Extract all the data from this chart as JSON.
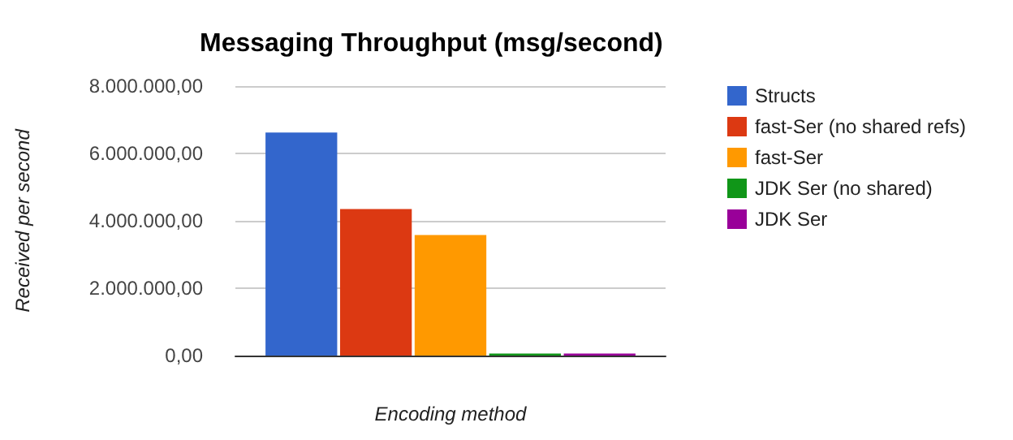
{
  "chart_data": {
    "type": "bar",
    "title": "Messaging Throughput (msg/second)",
    "xlabel": "Encoding method",
    "ylabel": "Received per second",
    "categories": [
      null
    ],
    "series": [
      {
        "name": "Structs",
        "color": "#3366cc",
        "values": [
          6620000
        ]
      },
      {
        "name": "fast-Ser (no shared refs)",
        "color": "#dc3912",
        "values": [
          4350000
        ]
      },
      {
        "name": "fast-Ser",
        "color": "#ff9900",
        "values": [
          3580000
        ]
      },
      {
        "name": "JDK Ser (no shared)",
        "color": "#109618",
        "values": [
          60000
        ]
      },
      {
        "name": "JDK Ser",
        "color": "#990099",
        "values": [
          60000
        ]
      }
    ],
    "ylim": [
      0,
      8000000
    ],
    "yticks": [
      {
        "value": 0,
        "label": "0,00"
      },
      {
        "value": 2000000,
        "label": "2.000.000,00"
      },
      {
        "value": 4000000,
        "label": "4.000.000,00"
      },
      {
        "value": 6000000,
        "label": "6.000.000,00"
      },
      {
        "value": 8000000,
        "label": "8.000.000,00"
      }
    ],
    "grid": "y",
    "legend": "right"
  }
}
